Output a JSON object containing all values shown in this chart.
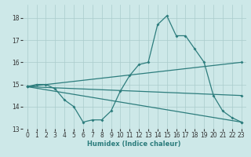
{
  "title": "",
  "xlabel": "Humidex (Indice chaleur)",
  "bg_color": "#cde8e8",
  "grid_color": "#aacccc",
  "line_color": "#2d7d7d",
  "xlim": [
    -0.5,
    23.5
  ],
  "ylim": [
    13.0,
    18.6
  ],
  "yticks": [
    13,
    14,
    15,
    16,
    17,
    18
  ],
  "xticks": [
    0,
    1,
    2,
    3,
    4,
    5,
    6,
    7,
    8,
    9,
    10,
    11,
    12,
    13,
    14,
    15,
    16,
    17,
    18,
    19,
    20,
    21,
    22,
    23
  ],
  "lines": [
    {
      "x": [
        0,
        1,
        2,
        3,
        4,
        5,
        6,
        7,
        8,
        9,
        10,
        11,
        12,
        13,
        14,
        15,
        16,
        17,
        18,
        19,
        20,
        21,
        22,
        23
      ],
      "y": [
        14.9,
        15.0,
        15.0,
        14.8,
        14.3,
        14.0,
        13.3,
        13.4,
        13.4,
        13.8,
        14.7,
        15.4,
        15.9,
        16.0,
        17.7,
        18.1,
        17.2,
        17.2,
        16.6,
        16.0,
        14.5,
        13.8,
        13.5,
        13.3
      ]
    },
    {
      "x": [
        0,
        23
      ],
      "y": [
        14.9,
        16.0
      ]
    },
    {
      "x": [
        0,
        23
      ],
      "y": [
        14.9,
        14.5
      ]
    },
    {
      "x": [
        0,
        23
      ],
      "y": [
        14.9,
        13.3
      ]
    }
  ]
}
